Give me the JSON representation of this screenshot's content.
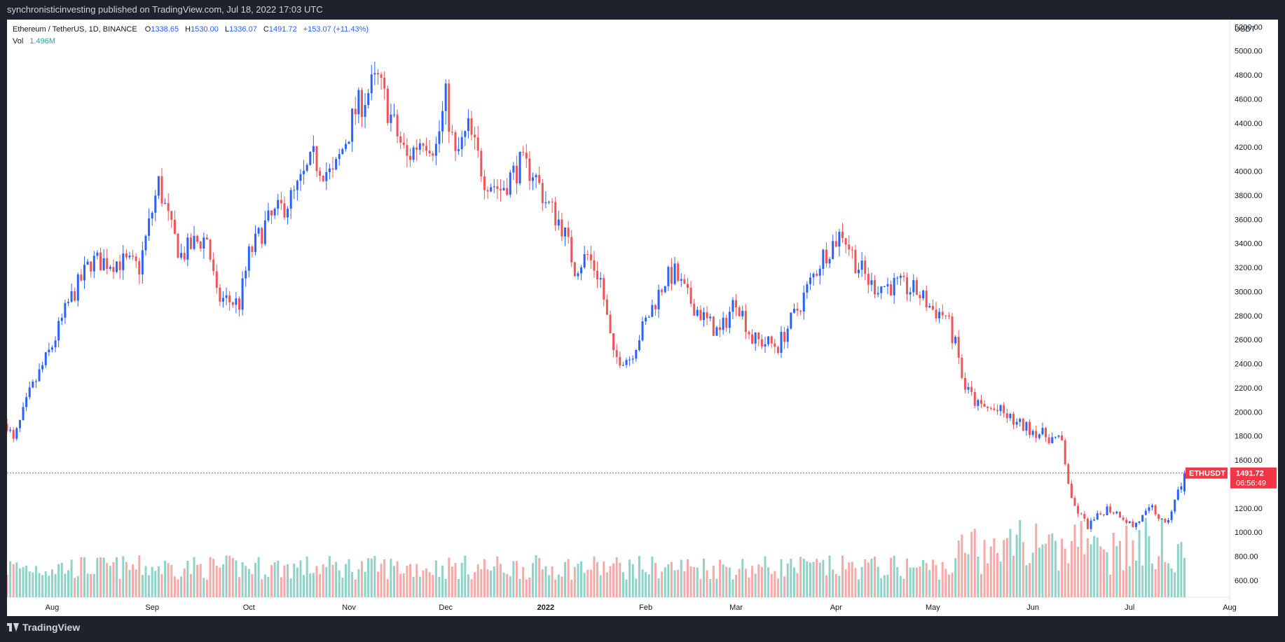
{
  "header": {
    "publisher_line": "synchronisticinvesting published on TradingView.com, Jul 18, 2022 17:03 UTC"
  },
  "legend": {
    "symbol": "Ethereum / TetherUS, 1D, BINANCE",
    "open_label": "O",
    "open": "1338.65",
    "high_label": "H",
    "high": "1530.00",
    "low_label": "L",
    "low": "1336.07",
    "close_label": "C",
    "close": "1491.72",
    "change": "+153.07 (+11.43%)",
    "vol_label": "Vol",
    "vol": "1.496M"
  },
  "footer": {
    "brand": "TradingView"
  },
  "colors": {
    "up": "#2962ff",
    "down": "#f05359",
    "vol_up": "#8fd3c8",
    "vol_down": "#f7a9a7",
    "price_line": "#f05359",
    "background": "#ffffff",
    "frame": "#1e222d"
  },
  "chart_data": {
    "type": "candlestick",
    "title": "Ethereum / TetherUS, 1D, BINANCE",
    "ylabel": "USDT",
    "currency": "USDT",
    "ylim": [
      460,
      5260
    ],
    "y_ticks": [
      "5200.00",
      "5000.00",
      "4800.00",
      "4600.00",
      "4400.00",
      "4200.00",
      "4000.00",
      "3800.00",
      "3600.00",
      "3400.00",
      "3200.00",
      "3000.00",
      "2800.00",
      "2600.00",
      "2400.00",
      "2200.00",
      "2000.00",
      "1800.00",
      "1600.00",
      "1400.00",
      "1200.00",
      "1000.00",
      "800.00",
      "600.00"
    ],
    "x_ticks": [
      "Aug",
      "Sep",
      "Oct",
      "Nov",
      "Dec",
      "2022",
      "Feb",
      "Mar",
      "Apr",
      "May",
      "Jun",
      "Jul",
      "Aug"
    ],
    "x_range": [
      "2021-07-18",
      "2022-08-01"
    ],
    "grid": false,
    "last_price": {
      "ticker": "ETHUSDT",
      "price": "1491.72",
      "countdown": "06:56:49",
      "value": 1491.72
    },
    "price_path": [
      [
        "2021-07-18",
        1900
      ],
      [
        "2021-07-20",
        1750
      ],
      [
        "2021-07-25",
        2150
      ],
      [
        "2021-08-01",
        2550
      ],
      [
        "2021-08-06",
        2900
      ],
      [
        "2021-08-13",
        3250
      ],
      [
        "2021-08-22",
        3250
      ],
      [
        "2021-08-28",
        3200
      ],
      [
        "2021-09-03",
        3900
      ],
      [
        "2021-09-07",
        3500
      ],
      [
        "2021-09-10",
        3300
      ],
      [
        "2021-09-14",
        3400
      ],
      [
        "2021-09-18",
        3450
      ],
      [
        "2021-09-21",
        2950
      ],
      [
        "2021-09-28",
        2900
      ],
      [
        "2021-10-01",
        3300
      ],
      [
        "2021-10-06",
        3550
      ],
      [
        "2021-10-15",
        3800
      ],
      [
        "2021-10-21",
        4100
      ],
      [
        "2021-10-27",
        3950
      ],
      [
        "2021-11-03",
        4500
      ],
      [
        "2021-11-08",
        4700
      ],
      [
        "2021-11-10",
        4750
      ],
      [
        "2021-11-16",
        4300
      ],
      [
        "2021-11-19",
        4100
      ],
      [
        "2021-11-24",
        4300
      ],
      [
        "2021-11-28",
        4200
      ],
      [
        "2021-12-01",
        4600
      ],
      [
        "2021-12-04",
        4100
      ],
      [
        "2021-12-08",
        4350
      ],
      [
        "2021-12-13",
        3950
      ],
      [
        "2021-12-18",
        3850
      ],
      [
        "2021-12-24",
        4050
      ],
      [
        "2021-12-28",
        4000
      ],
      [
        "2022-01-01",
        3750
      ],
      [
        "2022-01-06",
        3550
      ],
      [
        "2022-01-10",
        3200
      ],
      [
        "2022-01-14",
        3300
      ],
      [
        "2022-01-18",
        3100
      ],
      [
        "2022-01-22",
        2450
      ],
      [
        "2022-01-27",
        2450
      ],
      [
        "2022-02-01",
        2750
      ],
      [
        "2022-02-07",
        3100
      ],
      [
        "2022-02-10",
        3150
      ],
      [
        "2022-02-14",
        2950
      ],
      [
        "2022-02-20",
        2750
      ],
      [
        "2022-02-24",
        2650
      ],
      [
        "2022-03-01",
        2950
      ],
      [
        "2022-03-06",
        2600
      ],
      [
        "2022-03-14",
        2550
      ],
      [
        "2022-03-20",
        2850
      ],
      [
        "2022-03-28",
        3300
      ],
      [
        "2022-04-03",
        3500
      ],
      [
        "2022-04-07",
        3250
      ],
      [
        "2022-04-12",
        3050
      ],
      [
        "2022-04-20",
        3050
      ],
      [
        "2022-04-26",
        3000
      ],
      [
        "2022-05-01",
        2850
      ],
      [
        "2022-05-05",
        2800
      ],
      [
        "2022-05-08",
        2550
      ],
      [
        "2022-05-11",
        2200
      ],
      [
        "2022-05-15",
        2050
      ],
      [
        "2022-05-22",
        2000
      ],
      [
        "2022-05-27",
        1900
      ],
      [
        "2022-06-01",
        1850
      ],
      [
        "2022-06-05",
        1800
      ],
      [
        "2022-06-10",
        1750
      ],
      [
        "2022-06-13",
        1250
      ],
      [
        "2022-06-18",
        1050
      ],
      [
        "2022-06-20",
        1100
      ],
      [
        "2022-06-24",
        1200
      ],
      [
        "2022-06-28",
        1150
      ],
      [
        "2022-07-02",
        1050
      ],
      [
        "2022-07-08",
        1200
      ],
      [
        "2022-07-12",
        1050
      ],
      [
        "2022-07-15",
        1250
      ],
      [
        "2022-07-18",
        1490
      ]
    ]
  }
}
